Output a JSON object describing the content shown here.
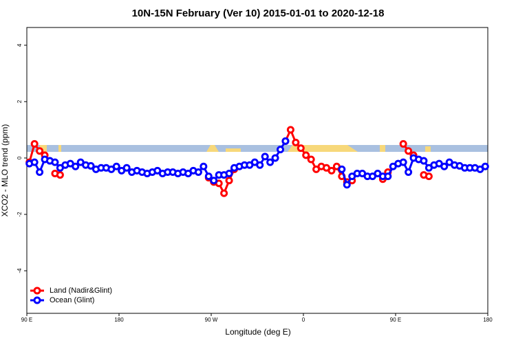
{
  "chart_data": {
    "type": "line",
    "title": "10N-15N February (Ver 10)   2015-01-01 to 2020-12-18",
    "x_label": "Longitude (deg E)",
    "y_label": "XCO2 - MLO trend (ppm)",
    "xlim": [
      90,
      540
    ],
    "xticks": [
      {
        "value": 90,
        "label": "90 E"
      },
      {
        "value": 180,
        "label": "180"
      },
      {
        "value": 270,
        "label": "90 W"
      },
      {
        "value": 360,
        "label": "0"
      },
      {
        "value": 450,
        "label": "90 E"
      },
      {
        "value": 540,
        "label": "180"
      }
    ],
    "ylim": [
      -5.51,
      4.63
    ],
    "yticks": [
      -4,
      -2,
      0,
      2,
      4
    ],
    "legend": "bottom-left",
    "x": [
      92.5,
      97.5,
      102.5,
      107.5,
      112.5,
      117.5,
      122.5,
      127.5,
      132.5,
      137.5,
      142.5,
      147.5,
      152.5,
      157.5,
      162.5,
      167.5,
      172.5,
      177.5,
      182.5,
      187.5,
      192.5,
      197.5,
      202.5,
      207.5,
      212.5,
      217.5,
      222.5,
      227.5,
      232.5,
      237.5,
      242.5,
      247.5,
      252.5,
      257.5,
      262.5,
      267.5,
      272.5,
      277.5,
      282.5,
      287.5,
      292.5,
      297.5,
      302.5,
      307.5,
      312.5,
      317.5,
      322.5,
      327.5,
      332.5,
      337.5,
      342.5,
      347.5,
      352.5,
      357.5,
      362.5,
      367.5,
      372.5,
      377.5,
      382.5,
      387.5,
      392.5,
      397.5,
      402.5,
      407.5,
      412.5,
      417.5,
      422.5,
      427.5,
      432.5,
      437.5,
      442.5,
      447.5,
      452.5,
      457.5,
      462.5,
      467.5,
      472.5,
      477.5,
      482.5,
      487.5,
      492.5,
      497.5,
      502.5,
      507.5,
      512.5,
      517.5,
      522.5,
      527.5,
      532.5,
      537.5
    ],
    "series": [
      {
        "name": "Land (Nadir&Glint)",
        "color": "#ff0000",
        "values": [
          -0.15,
          0.5,
          0.25,
          0.1,
          null,
          -0.55,
          -0.6,
          null,
          null,
          null,
          null,
          null,
          null,
          null,
          null,
          null,
          null,
          null,
          null,
          null,
          null,
          null,
          null,
          null,
          null,
          null,
          null,
          null,
          null,
          null,
          null,
          null,
          null,
          null,
          null,
          -0.7,
          -0.85,
          -0.9,
          -1.25,
          -0.8,
          -0.4,
          null,
          null,
          null,
          null,
          null,
          null,
          null,
          null,
          null,
          0.6,
          1.0,
          0.55,
          0.35,
          0.1,
          -0.05,
          -0.4,
          -0.3,
          -0.35,
          -0.45,
          -0.3,
          -0.65,
          -0.85,
          -0.8,
          null,
          null,
          null,
          null,
          null,
          -0.75,
          -0.5,
          null,
          null,
          0.5,
          0.25,
          0.1,
          null,
          -0.6,
          -0.65,
          null,
          null,
          null,
          null,
          null,
          null,
          null,
          null,
          null,
          null,
          null
        ]
      },
      {
        "name": "Ocean (Glint)",
        "color": "#0000ff",
        "values": [
          -0.2,
          -0.15,
          -0.5,
          -0.05,
          -0.1,
          -0.15,
          -0.35,
          -0.25,
          -0.2,
          -0.3,
          -0.15,
          -0.25,
          -0.28,
          -0.4,
          -0.35,
          -0.35,
          -0.4,
          -0.3,
          -0.45,
          -0.35,
          -0.5,
          -0.45,
          -0.5,
          -0.55,
          -0.5,
          -0.45,
          -0.55,
          -0.5,
          -0.5,
          -0.55,
          -0.5,
          -0.55,
          -0.45,
          -0.5,
          -0.3,
          -0.65,
          -0.8,
          -0.6,
          -0.6,
          -0.55,
          -0.35,
          -0.3,
          -0.25,
          -0.25,
          -0.15,
          -0.25,
          0.05,
          -0.15,
          0.0,
          0.3,
          0.6,
          null,
          null,
          null,
          null,
          null,
          null,
          null,
          null,
          null,
          null,
          -0.4,
          -0.95,
          -0.65,
          -0.55,
          -0.55,
          -0.65,
          -0.65,
          -0.55,
          -0.65,
          -0.65,
          -0.3,
          -0.2,
          -0.15,
          -0.5,
          0.0,
          -0.05,
          -0.1,
          -0.35,
          -0.25,
          -0.2,
          -0.3,
          -0.15,
          -0.25,
          -0.28,
          -0.35,
          -0.35,
          -0.35,
          -0.4,
          -0.3
        ]
      }
    ]
  }
}
